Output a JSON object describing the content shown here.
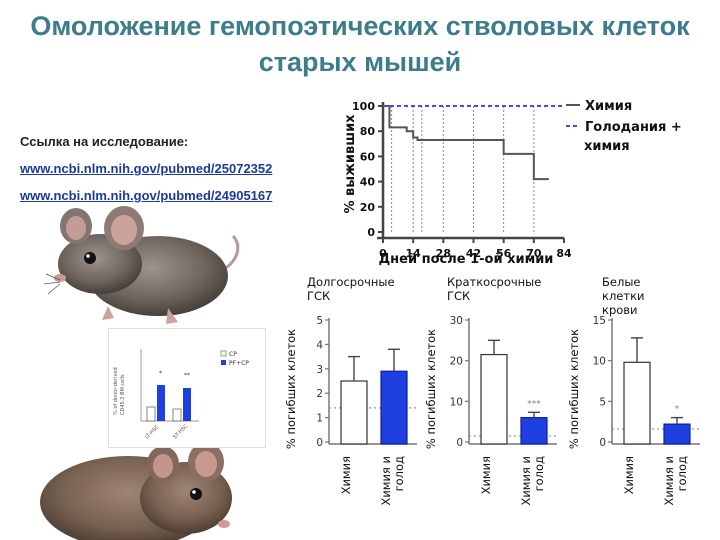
{
  "slide": {
    "title_line1": "Омоложение гемопоэтических стволовых клеток",
    "title_line2": "старых мышей",
    "ref_label": "Ссылка на исследование:",
    "links": [
      "www.ncbi.nlm.nih.gov/pubmed/25072352",
      "www.ncbi.nlm.nih.gov/pubmed/24905167"
    ]
  },
  "survival_chart": {
    "ylabel": "% выживших",
    "xlabel": "Дней после 1-ой химии",
    "xticks": [
      "0",
      "14",
      "28",
      "42",
      "56",
      "70",
      "84"
    ],
    "yticks": [
      "0",
      "20",
      "40",
      "60",
      "80",
      "100"
    ],
    "legend": [
      {
        "text": "Химия"
      },
      {
        "text": "Голодания +",
        "text2": "химия"
      }
    ]
  },
  "panels": [
    {
      "title": [
        "Долгосрочные",
        "ГСК"
      ],
      "ylabel": "% погибших клеток",
      "yticks": [
        "0",
        "1",
        "2",
        "3",
        "4",
        "5"
      ],
      "stars": ""
    },
    {
      "title": [
        "Краткосрочные",
        "ГСК"
      ],
      "ylabel": "% погибших клеток",
      "yticks": [
        "0",
        "10",
        "20",
        "30"
      ],
      "stars": "***"
    },
    {
      "title": [
        "Белые",
        "клетки",
        "крови"
      ],
      "ylabel": "% погибших клеток",
      "yticks": [
        "0",
        "5",
        "10",
        "15"
      ],
      "stars": "*"
    }
  ],
  "bar_categories": [
    [
      "Химия"
    ],
    [
      "Химия и",
      "голод"
    ]
  ],
  "inset": {
    "ylabel": "% of donor-derived",
    "ylabel2": "CD45.2 BM cells",
    "legend": [
      "CP",
      "PF+CP"
    ],
    "cats": [
      "LT-HSC",
      "ST-HSC"
    ],
    "stars": [
      "*",
      "**"
    ]
  },
  "chart_data": [
    {
      "type": "line",
      "title": "",
      "xlabel": "Дней после 1-ой химии",
      "ylabel": "% выживших",
      "xlim": [
        0,
        84
      ],
      "ylim": [
        0,
        100
      ],
      "vlines": [
        4,
        14,
        18,
        28,
        42,
        56,
        70
      ],
      "series": [
        {
          "name": "Химия",
          "style": "solid",
          "color": "#555555",
          "points": [
            [
              0,
              100
            ],
            [
              3,
              100
            ],
            [
              3,
              83
            ],
            [
              11,
              83
            ],
            [
              11,
              80
            ],
            [
              14,
              80
            ],
            [
              14,
              75
            ],
            [
              16,
              75
            ],
            [
              16,
              73
            ],
            [
              56,
              73
            ],
            [
              56,
              62
            ],
            [
              70,
              62
            ],
            [
              70,
              42
            ],
            [
              77,
              42
            ]
          ]
        },
        {
          "name": "Голодания + химия",
          "style": "dashed",
          "color": "#3f51d6",
          "points": [
            [
              0,
              100
            ],
            [
              84,
              100
            ]
          ]
        }
      ]
    },
    {
      "type": "bar",
      "title": "Долгосрочные ГСК",
      "ylabel": "% погибших клеток",
      "categories": [
        "Химия",
        "Химия и голод"
      ],
      "ylim": [
        0,
        5
      ],
      "values": [
        2.5,
        2.9
      ],
      "errors": [
        1.0,
        0.9
      ],
      "baseline": 1.4
    },
    {
      "type": "bar",
      "title": "Краткосрочные ГСК",
      "ylabel": "% погибших клеток",
      "categories": [
        "Химия",
        "Химия и голод"
      ],
      "ylim": [
        0,
        30
      ],
      "values": [
        21.5,
        6.0
      ],
      "errors": [
        3.5,
        1.3
      ],
      "baseline": 1.5
    },
    {
      "type": "bar",
      "title": "Белые клетки крови",
      "ylabel": "% погибших клеток",
      "categories": [
        "Химия",
        "Химия и голод"
      ],
      "ylim": [
        0,
        15
      ],
      "values": [
        9.8,
        2.2
      ],
      "errors": [
        3.0,
        0.8
      ],
      "baseline": 1.6
    }
  ],
  "colors": {
    "title": "#3c7c8c",
    "link": "#1a3a9c",
    "bar_fast": "#1f3fe0",
    "bar_chemo": "#ffffff",
    "axis": "#666666"
  }
}
